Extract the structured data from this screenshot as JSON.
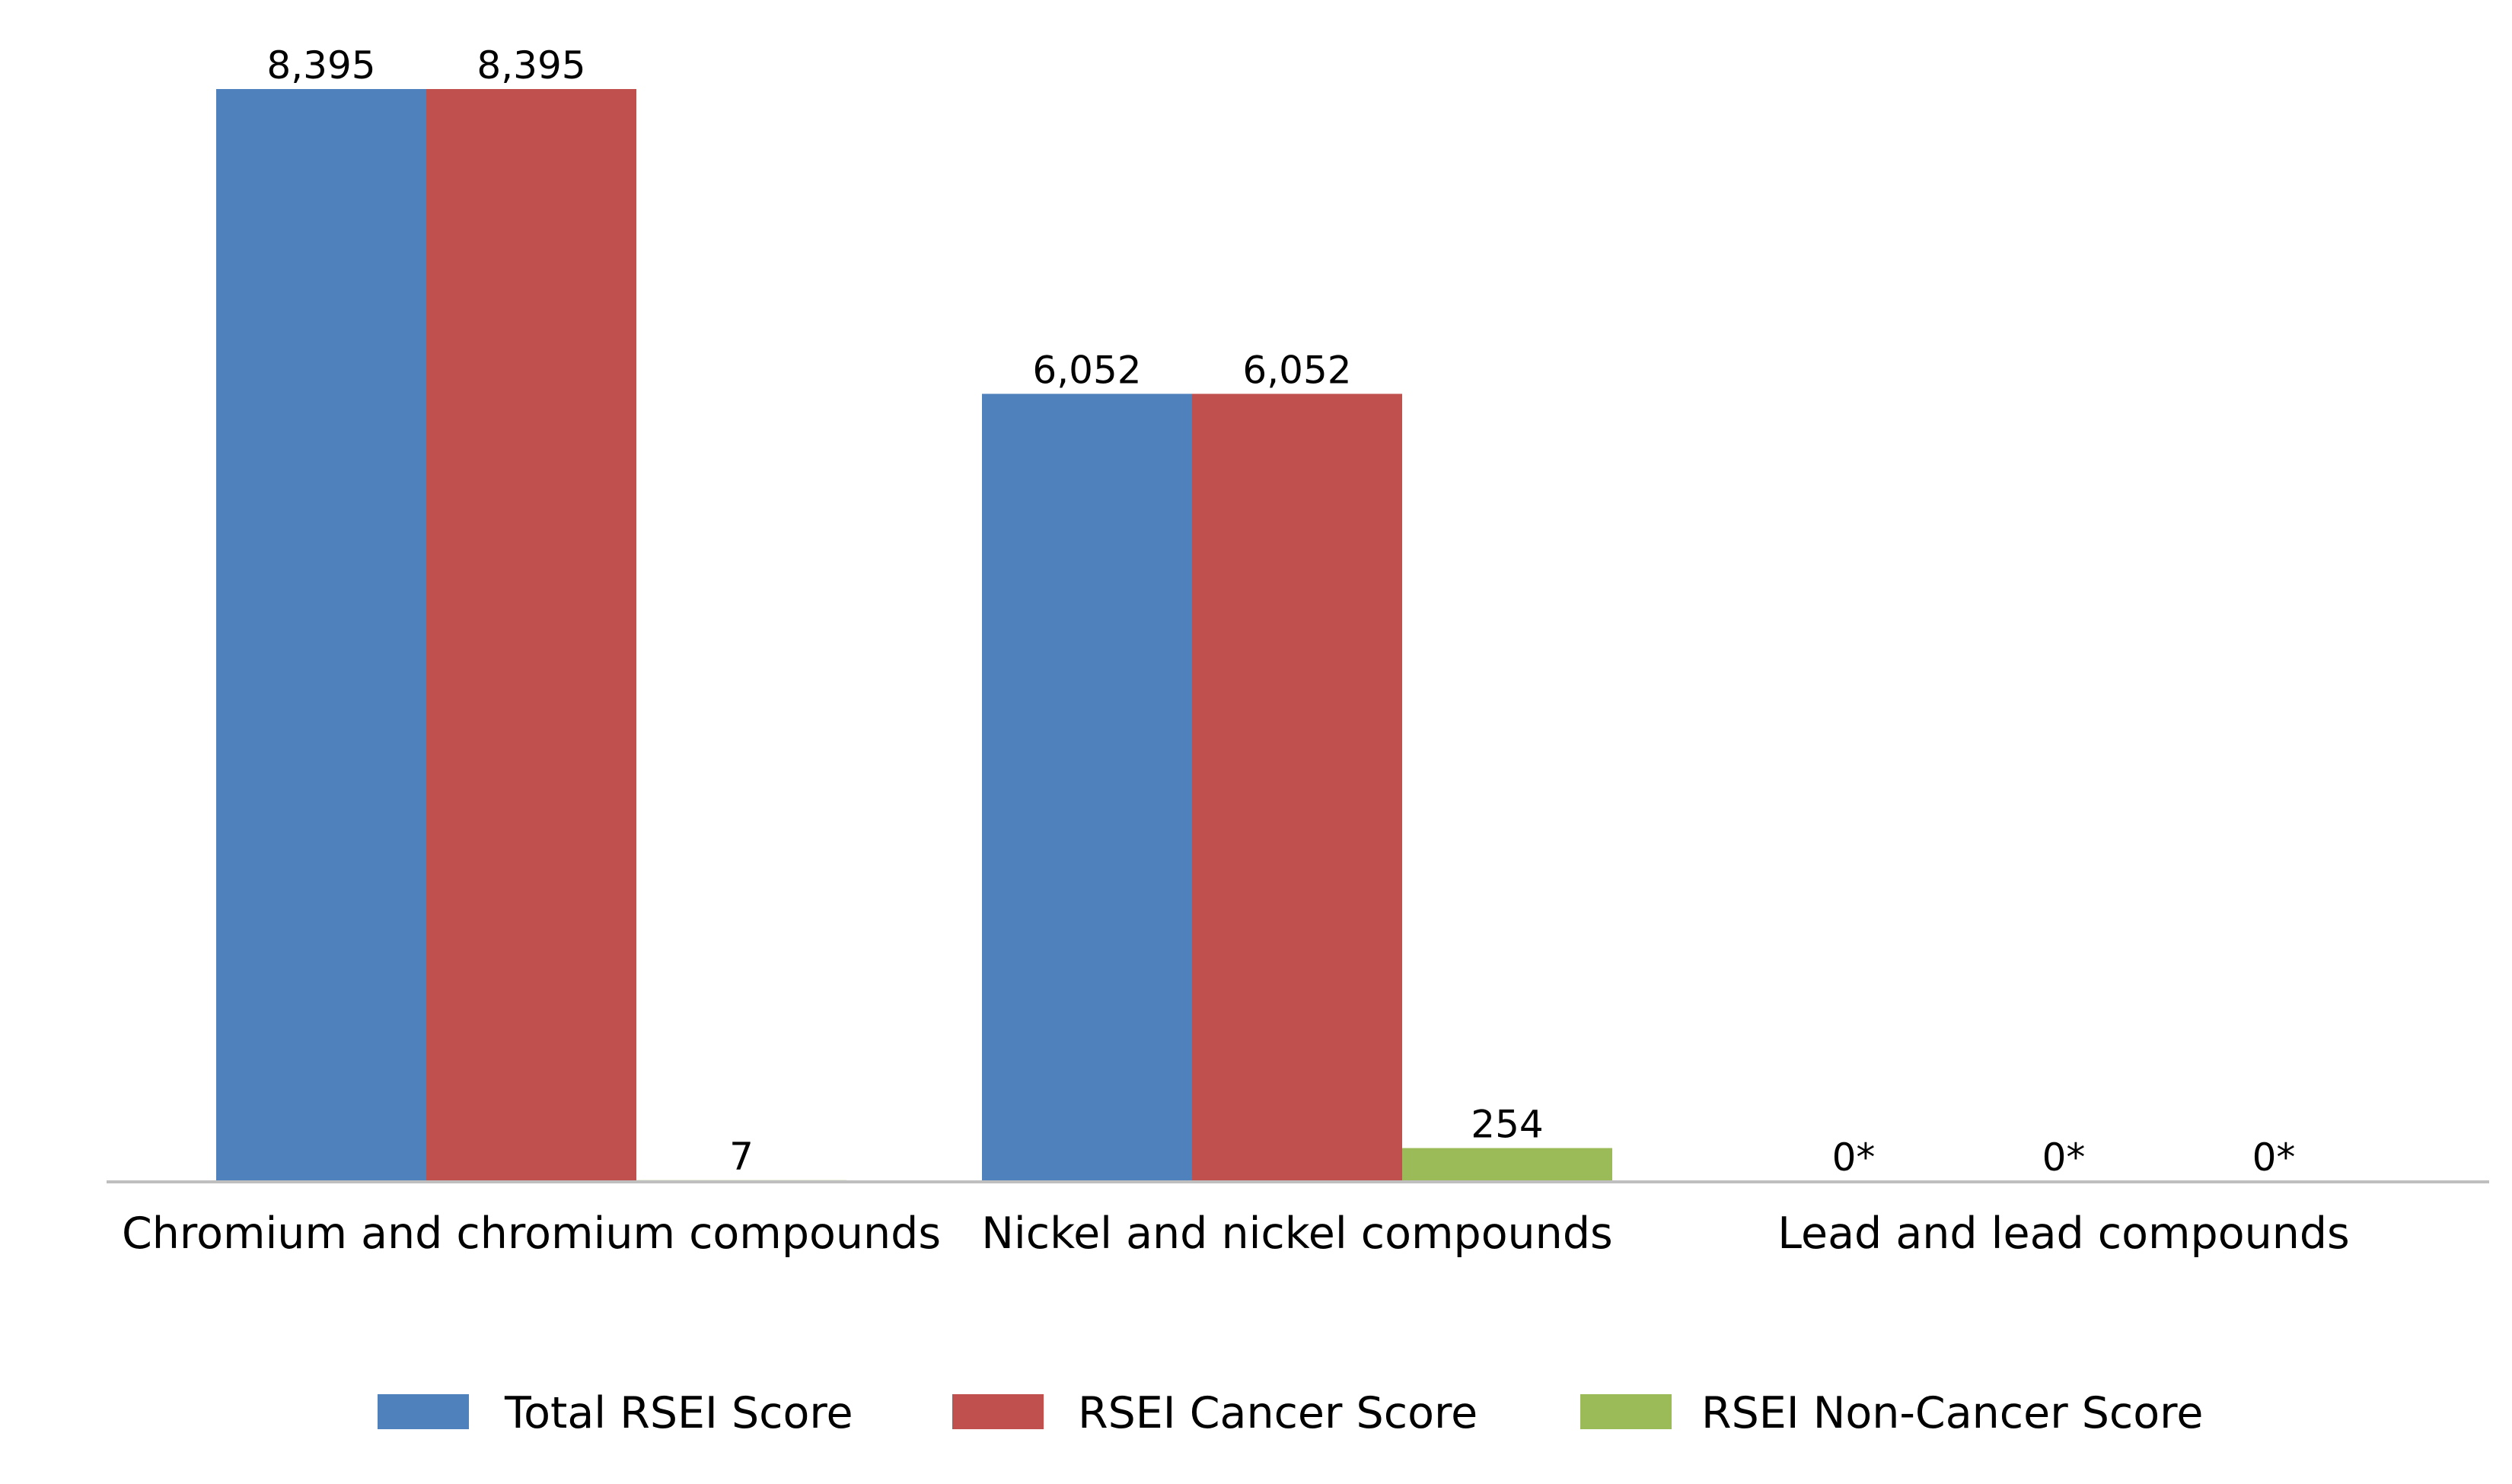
{
  "chart_data": {
    "type": "bar",
    "categories": [
      "Chromium and chromium compounds",
      "Nickel and nickel compounds",
      "Lead and lead compounds"
    ],
    "series": [
      {
        "name": "Total RSEI Score",
        "color": "#4f81bd",
        "values": [
          8395,
          6052,
          0
        ],
        "labels": [
          "8,395",
          "6,052",
          "0*"
        ]
      },
      {
        "name": "RSEI Cancer Score",
        "color": "#c0504d",
        "values": [
          8395,
          6052,
          0
        ],
        "labels": [
          "8,395",
          "6,052",
          "0*"
        ]
      },
      {
        "name": "RSEI Non-Cancer Score",
        "color": "#9bbb59",
        "values": [
          7,
          254,
          0
        ],
        "labels": [
          "7",
          "254",
          "0*"
        ]
      }
    ],
    "ylim": [
      0,
      8395
    ],
    "grid": false,
    "legend_position": "bottom",
    "axis_color": "#bfbfbf"
  }
}
